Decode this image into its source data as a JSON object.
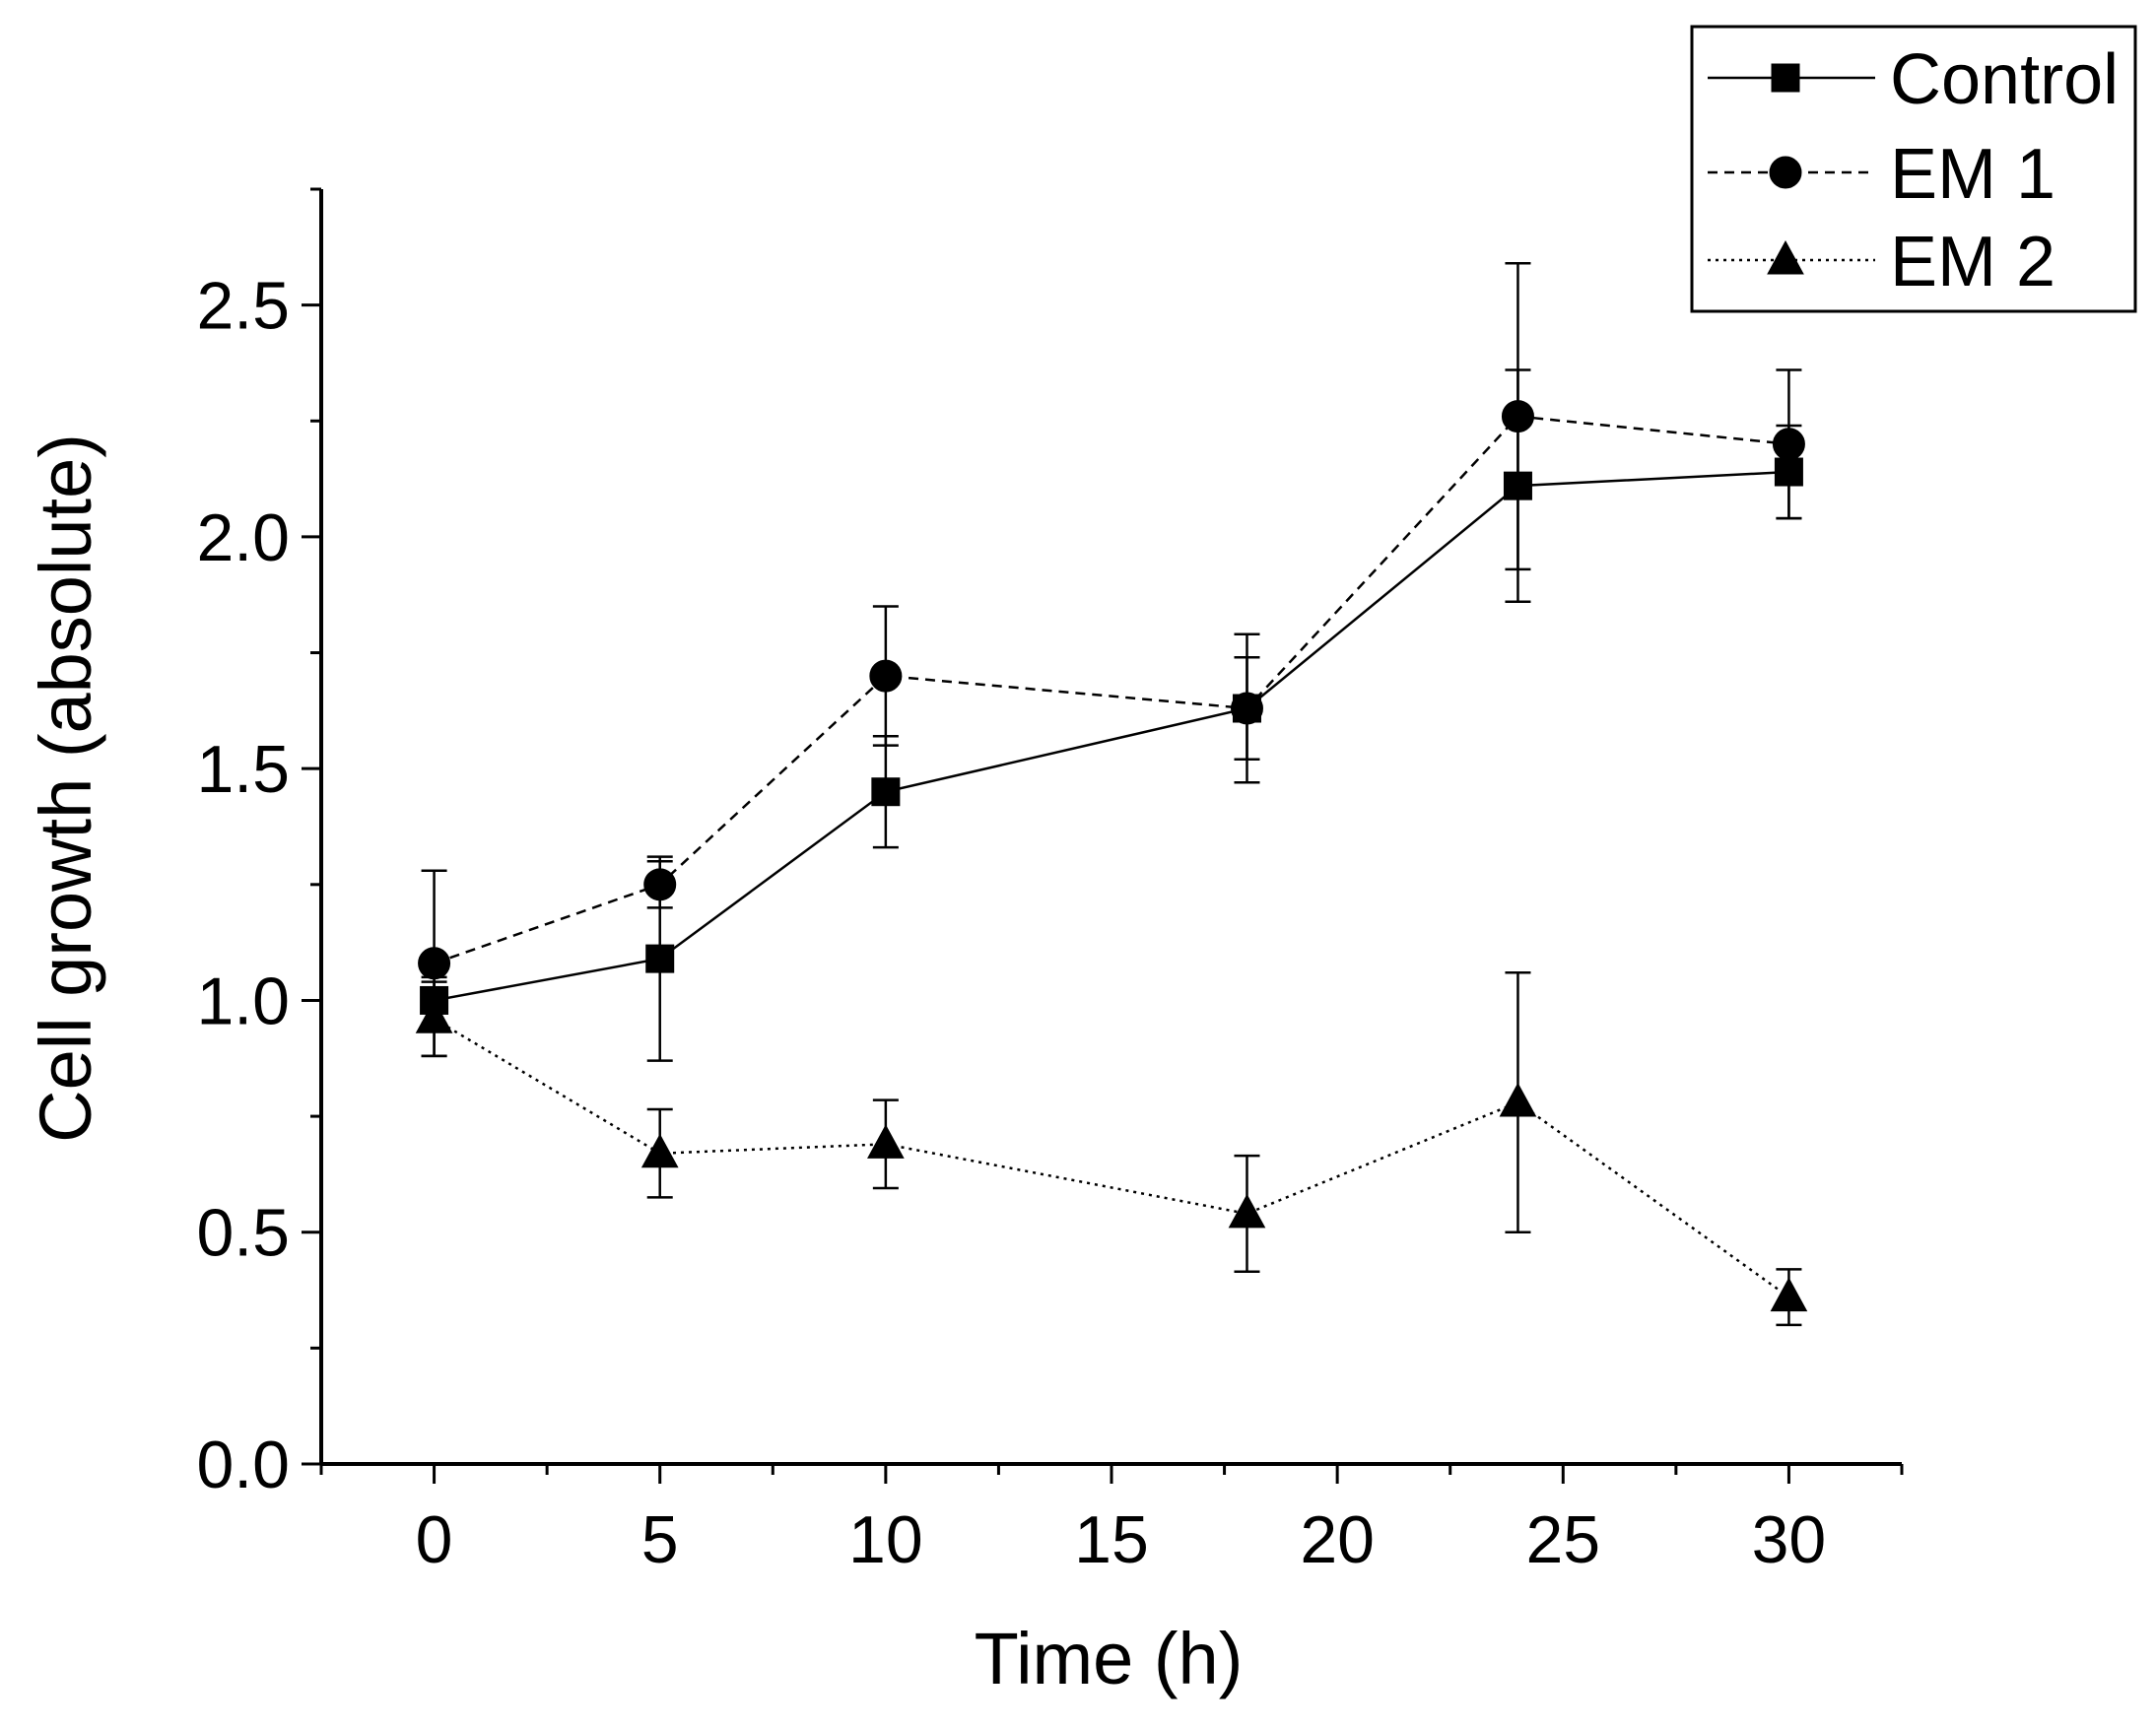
{
  "chart_data": {
    "type": "line",
    "title": "",
    "xlabel": "Time (h)",
    "ylabel": "Cell growth (absolute)",
    "xlim": [
      -2.5,
      32.5
    ],
    "ylim": [
      0,
      2.75
    ],
    "xticks": [
      0,
      5,
      10,
      15,
      20,
      25,
      30
    ],
    "xtick_labels": [
      "0",
      "5",
      "10",
      "15",
      "20",
      "25",
      "30"
    ],
    "yticks": [
      0,
      0.5,
      1.0,
      1.5,
      2.0,
      2.5
    ],
    "ytick_labels": [
      "0.0",
      "0.5",
      "1.0",
      "1.5",
      "2.0",
      "2.5"
    ],
    "legend_position": "top-right",
    "x": [
      0,
      5,
      10,
      18,
      24,
      30
    ],
    "series": [
      {
        "name": "Control",
        "marker": "square",
        "line_style": "solid",
        "values": [
          1.0,
          1.09,
          1.45,
          1.63,
          2.11,
          2.14
        ],
        "error": [
          0.05,
          0.22,
          0.12,
          0.11,
          0.25,
          0.1
        ]
      },
      {
        "name": "EM 1",
        "marker": "circle",
        "line_style": "dashed",
        "values": [
          1.08,
          1.25,
          1.7,
          1.63,
          2.26,
          2.2
        ],
        "error": [
          0.2,
          0.05,
          0.15,
          0.16,
          0.33,
          0.16
        ]
      },
      {
        "name": "EM 2",
        "marker": "triangle",
        "line_style": "dotted",
        "values": [
          0.96,
          0.67,
          0.69,
          0.54,
          0.78,
          0.36
        ],
        "error": [
          0.08,
          0.095,
          0.095,
          0.125,
          0.28,
          0.06
        ]
      }
    ]
  }
}
